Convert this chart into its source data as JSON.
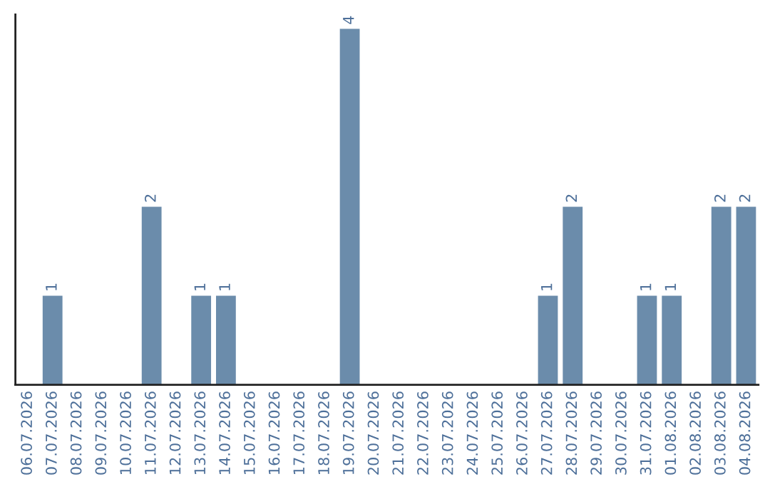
{
  "chart_data": {
    "type": "bar",
    "categories": [
      "06.07.2026",
      "07.07.2026",
      "08.07.2026",
      "09.07.2026",
      "10.07.2026",
      "11.07.2026",
      "12.07.2026",
      "13.07.2026",
      "14.07.2026",
      "15.07.2026",
      "16.07.2026",
      "17.07.2026",
      "18.07.2026",
      "19.07.2026",
      "20.07.2026",
      "21.07.2026",
      "22.07.2026",
      "23.07.2026",
      "24.07.2026",
      "25.07.2026",
      "26.07.2026",
      "27.07.2026",
      "28.07.2026",
      "29.07.2026",
      "30.07.2026",
      "31.07.2026",
      "01.08.2026",
      "02.08.2026",
      "03.08.2026",
      "04.08.2026"
    ],
    "values": [
      0,
      1,
      0,
      0,
      0,
      2,
      0,
      1,
      1,
      0,
      0,
      0,
      0,
      4,
      0,
      0,
      0,
      0,
      0,
      0,
      0,
      1,
      2,
      0,
      0,
      1,
      1,
      0,
      2,
      2
    ],
    "value_labels": [
      null,
      "1",
      null,
      null,
      null,
      "2",
      null,
      "1",
      "1",
      null,
      null,
      null,
      null,
      "4",
      null,
      null,
      null,
      null,
      null,
      null,
      null,
      "1",
      "2",
      null,
      null,
      "1",
      "1",
      null,
      "2",
      "2"
    ],
    "color": "#6b8cab",
    "tick_labels": "x",
    "grid": false,
    "legend": false
  }
}
